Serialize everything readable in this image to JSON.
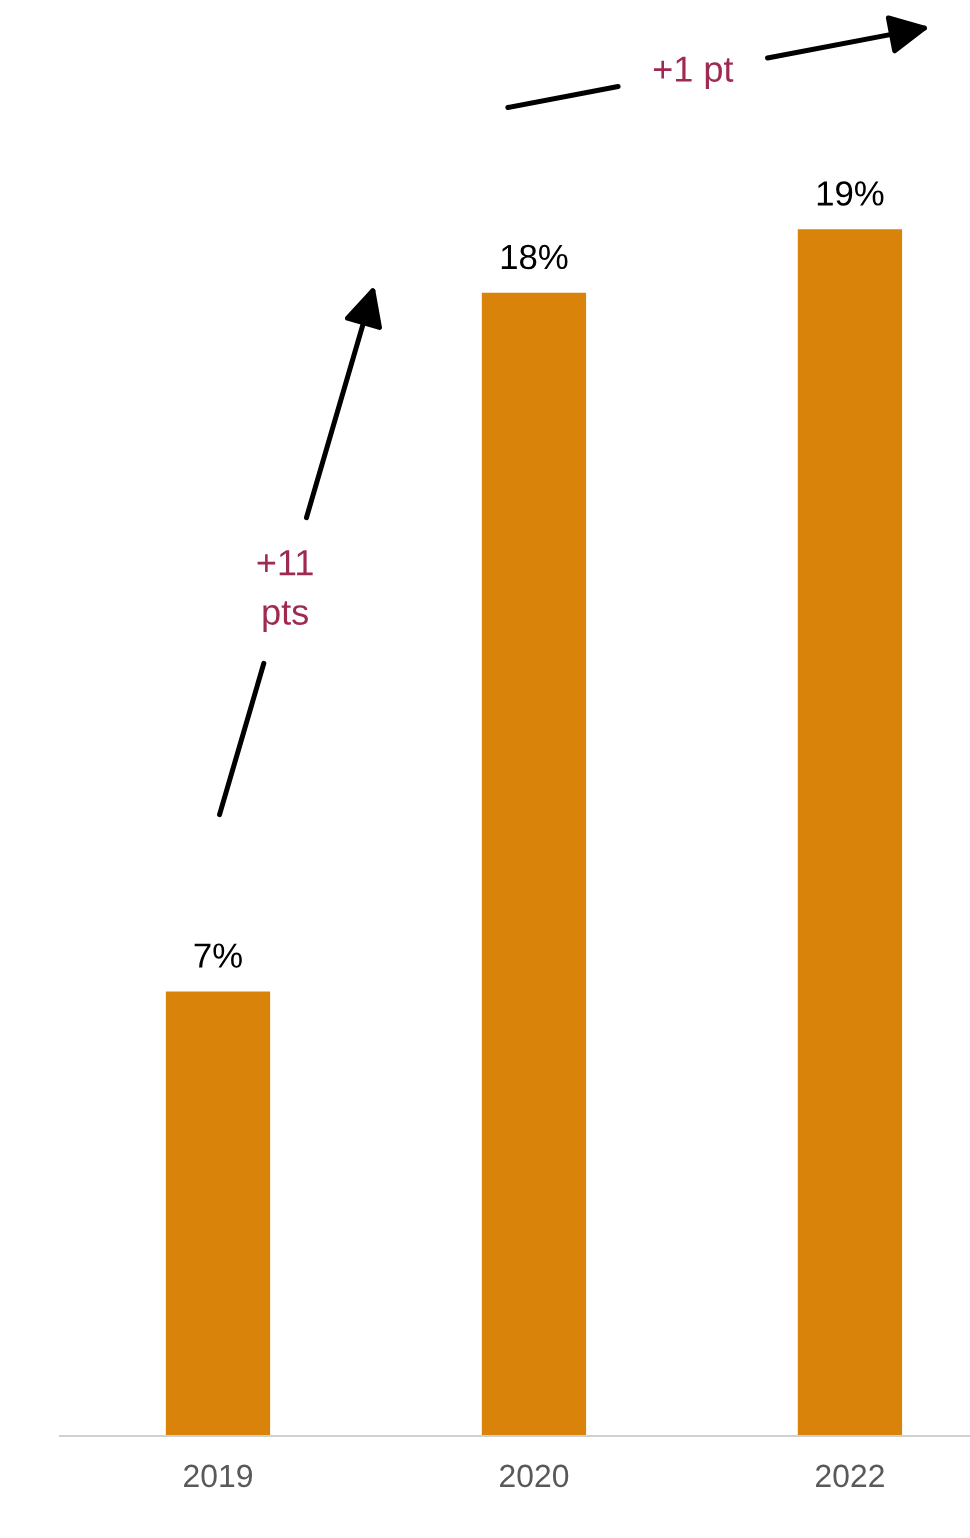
{
  "chart_data": {
    "type": "bar",
    "categories": [
      "2019",
      "2020",
      "2022"
    ],
    "values": [
      7,
      18,
      19
    ],
    "value_labels": [
      "7%",
      "18%",
      "19%"
    ],
    "color": "#d9830a",
    "annotations": [
      "+11\npts",
      "+1 pt"
    ],
    "grid": false,
    "legend": false
  }
}
